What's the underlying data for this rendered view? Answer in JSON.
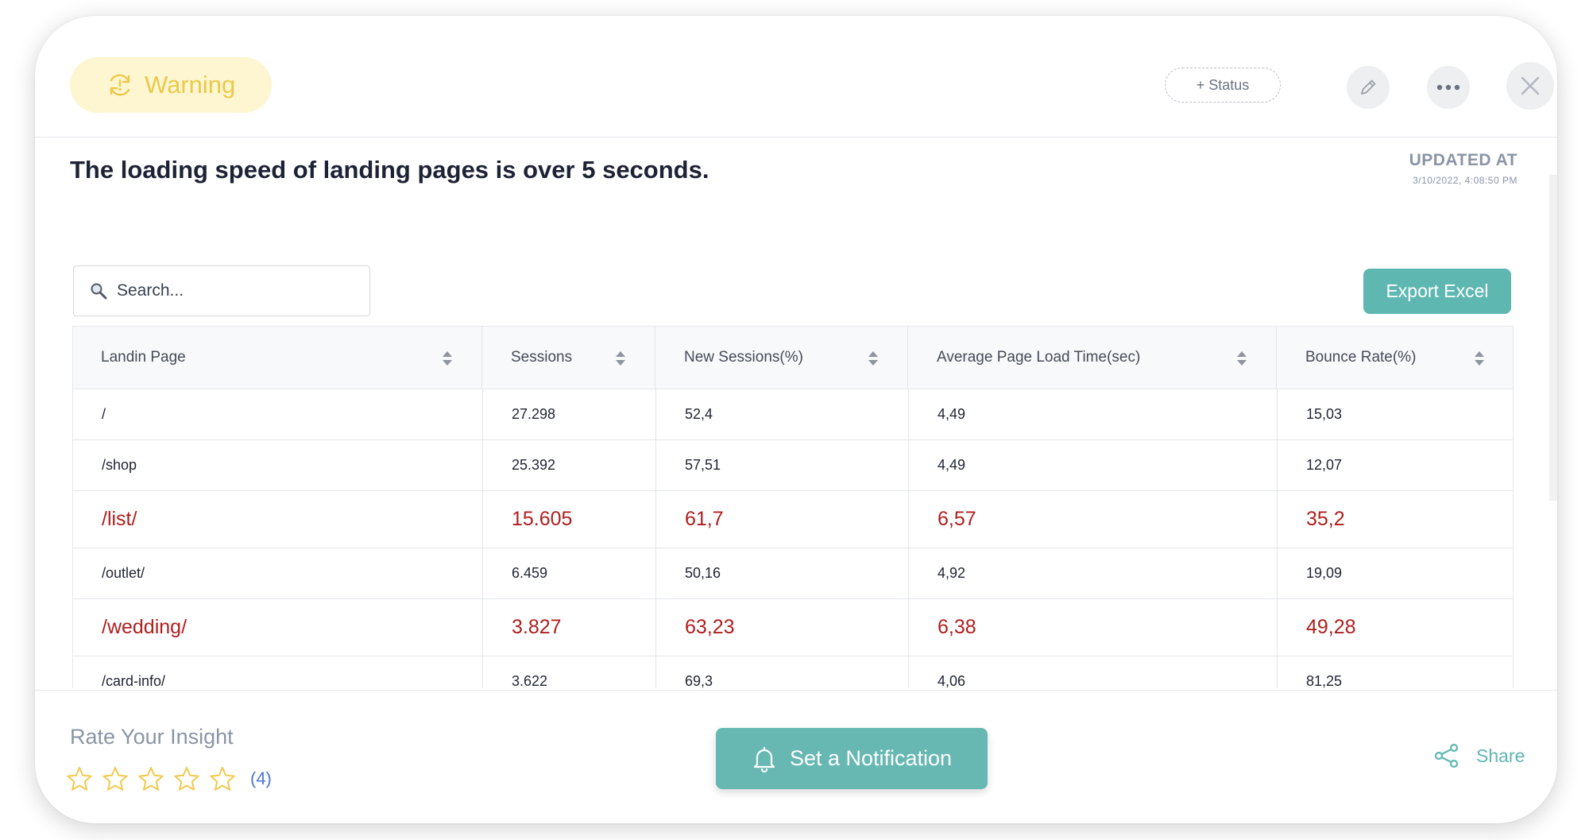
{
  "header": {
    "badge_label": "Warning",
    "status_label": "+ Status",
    "badge_color": "#ecc94b"
  },
  "insight": {
    "headline": "The loading speed of landing pages is over 5 seconds.",
    "updated_label": "UPDATED AT",
    "updated_time": "3/10/2022, 4:08:50 PM"
  },
  "search": {
    "placeholder": "Search..."
  },
  "export_label": "Export Excel",
  "table": {
    "columns": [
      "Landin Page",
      "Sessions",
      "New Sessions(%)",
      "Average Page Load Time(sec)",
      "Bounce Rate(%)"
    ],
    "rows": [
      {
        "cells": [
          "/",
          "27.298",
          "52,4",
          "4,49",
          "15,03"
        ],
        "highlight": false
      },
      {
        "cells": [
          "/shop",
          "25.392",
          "57,51",
          "4,49",
          "12,07"
        ],
        "highlight": false
      },
      {
        "cells": [
          "/list/",
          "15.605",
          "61,7",
          "6,57",
          "35,2"
        ],
        "highlight": true
      },
      {
        "cells": [
          "/outlet/",
          "6.459",
          "50,16",
          "4,92",
          "19,09"
        ],
        "highlight": false
      },
      {
        "cells": [
          "/wedding/",
          "3.827",
          "63,23",
          "6,38",
          "49,28"
        ],
        "highlight": true
      },
      {
        "cells": [
          "/card-info/",
          "3.622",
          "69,3",
          "4,06",
          "81,25"
        ],
        "highlight": false
      }
    ],
    "highlight_color": "#b01e1e"
  },
  "footer": {
    "rate_label": "Rate Your Insight",
    "rating_count": "(4)",
    "notify_label": "Set a Notification",
    "share_label": "Share"
  },
  "colors": {
    "accent": "#5fb7b1",
    "star": "#f2c94c"
  }
}
